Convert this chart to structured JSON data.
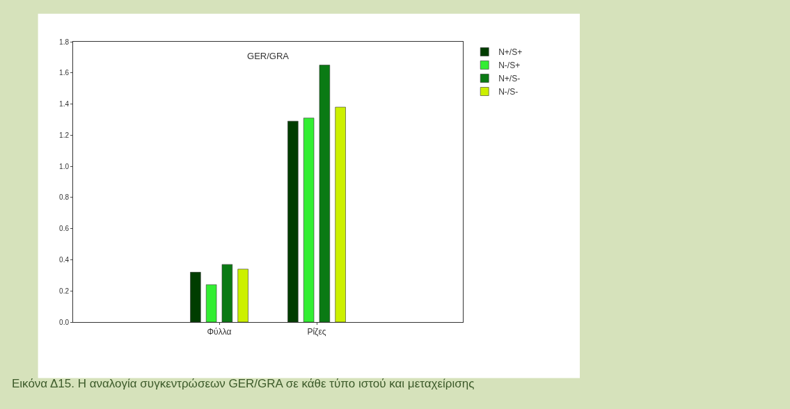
{
  "chart_data": {
    "type": "bar",
    "title": "GER/GRA",
    "categories": [
      null,
      "Φύλλα",
      "Ρίζες",
      null
    ],
    "series": [
      {
        "name": "N+/S+",
        "color": "#003d00",
        "values": [
          null,
          0.32,
          1.29,
          null
        ]
      },
      {
        "name": "N-/S+",
        "color": "#33ee33",
        "values": [
          null,
          0.24,
          1.31,
          null
        ]
      },
      {
        "name": "N+/S-",
        "color": "#0a7a14",
        "values": [
          null,
          0.37,
          1.65,
          null
        ]
      },
      {
        "name": "N-/S-",
        "color": "#ccf000",
        "values": [
          null,
          0.34,
          1.38,
          null
        ]
      }
    ],
    "ylim": [
      0,
      1.8
    ],
    "yticks": [
      {
        "value": 0,
        "label": "0.0"
      },
      {
        "value": 0.2,
        "label": "0.2"
      },
      {
        "value": 0.4,
        "label": "0.4"
      },
      {
        "value": 0.6,
        "label": "0.6"
      },
      {
        "value": 0.8,
        "label": "0.8"
      },
      {
        "value": 1.0,
        "label": "1.0"
      },
      {
        "value": 1.2,
        "label": "1.2"
      },
      {
        "value": 1.4,
        "label": "1.4"
      },
      {
        "value": 1.6,
        "label": "1.6"
      },
      {
        "value": 1.8,
        "label": "1.8"
      }
    ],
    "legend": "top right",
    "annotations": [
      "Εικόνα Δ15. Η αναλογία συγκεντρώσεων GER/GRA σε κάθε τύπο ιστού και μεταχείρισης"
    ]
  }
}
